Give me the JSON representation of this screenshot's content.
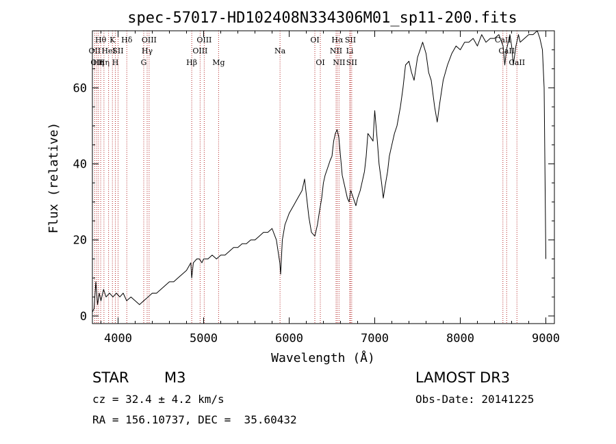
{
  "chart_data": {
    "type": "line",
    "title": "spec-57017-HD102408N334306M01_sp11-200.fits",
    "xlabel": "Wavelength (Å)",
    "ylabel": "Flux (relative)",
    "xlim": [
      3700,
      9100
    ],
    "ylim": [
      -2,
      75
    ],
    "xticks": [
      4000,
      5000,
      6000,
      7000,
      8000,
      9000
    ],
    "yticks": [
      0,
      20,
      40,
      60
    ],
    "series": [
      {
        "name": "spectrum",
        "x": [
          3700,
          3720,
          3740,
          3760,
          3780,
          3800,
          3830,
          3860,
          3900,
          3940,
          3980,
          4020,
          4060,
          4100,
          4150,
          4200,
          4250,
          4300,
          4350,
          4400,
          4450,
          4500,
          4550,
          4600,
          4650,
          4700,
          4750,
          4800,
          4850,
          4861,
          4880,
          4920,
          4950,
          4980,
          5000,
          5050,
          5100,
          5150,
          5200,
          5250,
          5300,
          5350,
          5400,
          5450,
          5500,
          5550,
          5600,
          5650,
          5700,
          5750,
          5800,
          5850,
          5890,
          5900,
          5920,
          5950,
          6000,
          6050,
          6100,
          6150,
          6180,
          6200,
          6230,
          6260,
          6300,
          6330,
          6350,
          6380,
          6400,
          6420,
          6450,
          6480,
          6500,
          6520,
          6540,
          6560,
          6580,
          6600,
          6620,
          6650,
          6680,
          6700,
          6720,
          6750,
          6780,
          6800,
          6830,
          6850,
          6880,
          6900,
          6920,
          6950,
          6980,
          7000,
          7030,
          7050,
          7080,
          7100,
          7120,
          7150,
          7170,
          7200,
          7230,
          7260,
          7300,
          7330,
          7360,
          7400,
          7430,
          7460,
          7500,
          7530,
          7560,
          7600,
          7630,
          7660,
          7700,
          7730,
          7760,
          7800,
          7850,
          7900,
          7950,
          8000,
          8050,
          8100,
          8150,
          8200,
          8250,
          8300,
          8350,
          8400,
          8450,
          8500,
          8520,
          8540,
          8560,
          8580,
          8600,
          8620,
          8650,
          8680,
          8700,
          8750,
          8800,
          8850,
          8900,
          8930,
          8960,
          8980,
          9000
        ],
        "y": [
          1,
          2,
          9,
          3,
          6,
          4,
          7,
          5,
          6,
          5,
          6,
          5,
          6,
          4,
          5,
          4,
          3,
          4,
          5,
          6,
          6,
          7,
          8,
          9,
          9,
          10,
          11,
          12,
          14,
          10,
          14,
          15,
          15,
          14,
          15,
          15,
          16,
          15,
          16,
          16,
          17,
          18,
          18,
          19,
          19,
          20,
          20,
          21,
          22,
          22,
          23,
          20,
          14,
          11,
          20,
          24,
          27,
          29,
          31,
          33,
          36,
          32,
          26,
          22,
          21,
          24,
          27,
          31,
          35,
          37,
          39,
          41,
          42,
          46,
          48,
          49,
          47,
          42,
          37,
          34,
          31,
          30,
          33,
          31,
          29,
          31,
          33,
          35,
          38,
          42,
          48,
          47,
          46,
          54,
          46,
          40,
          35,
          31,
          34,
          38,
          42,
          45,
          48,
          50,
          55,
          60,
          66,
          67,
          64,
          62,
          68,
          70,
          72,
          69,
          64,
          62,
          55,
          51,
          56,
          62,
          66,
          69,
          71,
          70,
          72,
          72,
          73,
          71,
          74,
          72,
          73,
          73,
          74,
          71,
          66,
          70,
          72,
          74,
          71,
          66,
          71,
          74,
          72,
          73,
          74,
          74,
          75,
          73,
          70,
          60,
          15
        ]
      }
    ],
    "lines": [
      {
        "wavelength": 3727,
        "labels": [
          "OII"
        ],
        "rows": [
          1
        ]
      },
      {
        "wavelength": 3750,
        "labels": [
          "OII"
        ],
        "rows": [
          2
        ]
      },
      {
        "wavelength": 3770,
        "labels": [
          "Hη"
        ],
        "rows": [
          2
        ]
      },
      {
        "wavelength": 3797,
        "labels": [
          "Hθ"
        ],
        "rows": [
          0
        ]
      },
      {
        "wavelength": 3835,
        "labels": [
          "Hη"
        ],
        "rows": [
          2
        ]
      },
      {
        "wavelength": 3889,
        "labels": [
          "HeI"
        ],
        "rows": [
          1
        ]
      },
      {
        "wavelength": 3934,
        "labels": [
          "K"
        ],
        "rows": [
          0
        ]
      },
      {
        "wavelength": 3968,
        "labels": [
          "H"
        ],
        "rows": [
          2
        ]
      },
      {
        "wavelength": 4000,
        "labels": [
          "SII"
        ],
        "rows": [
          1
        ]
      },
      {
        "wavelength": 4102,
        "labels": [
          "Hδ"
        ],
        "rows": [
          0
        ]
      },
      {
        "wavelength": 4300,
        "labels": [
          "G"
        ],
        "rows": [
          2
        ]
      },
      {
        "wavelength": 4340,
        "labels": [
          "Hγ"
        ],
        "rows": [
          1
        ]
      },
      {
        "wavelength": 4363,
        "labels": [
          "OIII"
        ],
        "rows": [
          0
        ]
      },
      {
        "wavelength": 4861,
        "labels": [
          "Hβ"
        ],
        "rows": [
          2
        ]
      },
      {
        "wavelength": 4959,
        "labels": [
          "OIII"
        ],
        "rows": [
          1
        ]
      },
      {
        "wavelength": 5007,
        "labels": [
          "OIII"
        ],
        "rows": [
          0
        ]
      },
      {
        "wavelength": 5175,
        "labels": [
          "Mg"
        ],
        "rows": [
          2
        ]
      },
      {
        "wavelength": 5893,
        "labels": [
          "Na"
        ],
        "rows": [
          1
        ]
      },
      {
        "wavelength": 6300,
        "labels": [
          "OI"
        ],
        "rows": [
          0
        ]
      },
      {
        "wavelength": 6364,
        "labels": [
          "OI"
        ],
        "rows": [
          2
        ]
      },
      {
        "wavelength": 6548,
        "labels": [
          "NII"
        ],
        "rows": [
          1
        ]
      },
      {
        "wavelength": 6563,
        "labels": [
          "Hα"
        ],
        "rows": [
          0
        ]
      },
      {
        "wavelength": 6583,
        "labels": [
          "NII"
        ],
        "rows": [
          2
        ]
      },
      {
        "wavelength": 6708,
        "labels": [
          "Li"
        ],
        "rows": [
          1
        ]
      },
      {
        "wavelength": 6716,
        "labels": [
          "SII"
        ],
        "rows": [
          0
        ]
      },
      {
        "wavelength": 6731,
        "labels": [
          "SII"
        ],
        "rows": [
          2
        ]
      },
      {
        "wavelength": 8498,
        "labels": [
          "CaII"
        ],
        "rows": [
          0
        ]
      },
      {
        "wavelength": 8542,
        "labels": [
          "CaII"
        ],
        "rows": [
          1
        ]
      },
      {
        "wavelength": 8662,
        "labels": [
          "CaII"
        ],
        "rows": [
          2
        ]
      }
    ]
  },
  "info": {
    "class": "STAR",
    "subclass": "M3",
    "survey": "LAMOST DR3",
    "cz": "cz = 32.4 ± 4.2 km/s",
    "obs_date": "Obs-Date: 20141225",
    "coords": "RA = 156.10737, DEC =  35.60432"
  },
  "colors": {
    "line": "#000000",
    "marker": "#b22222",
    "background": "#ffffff"
  }
}
